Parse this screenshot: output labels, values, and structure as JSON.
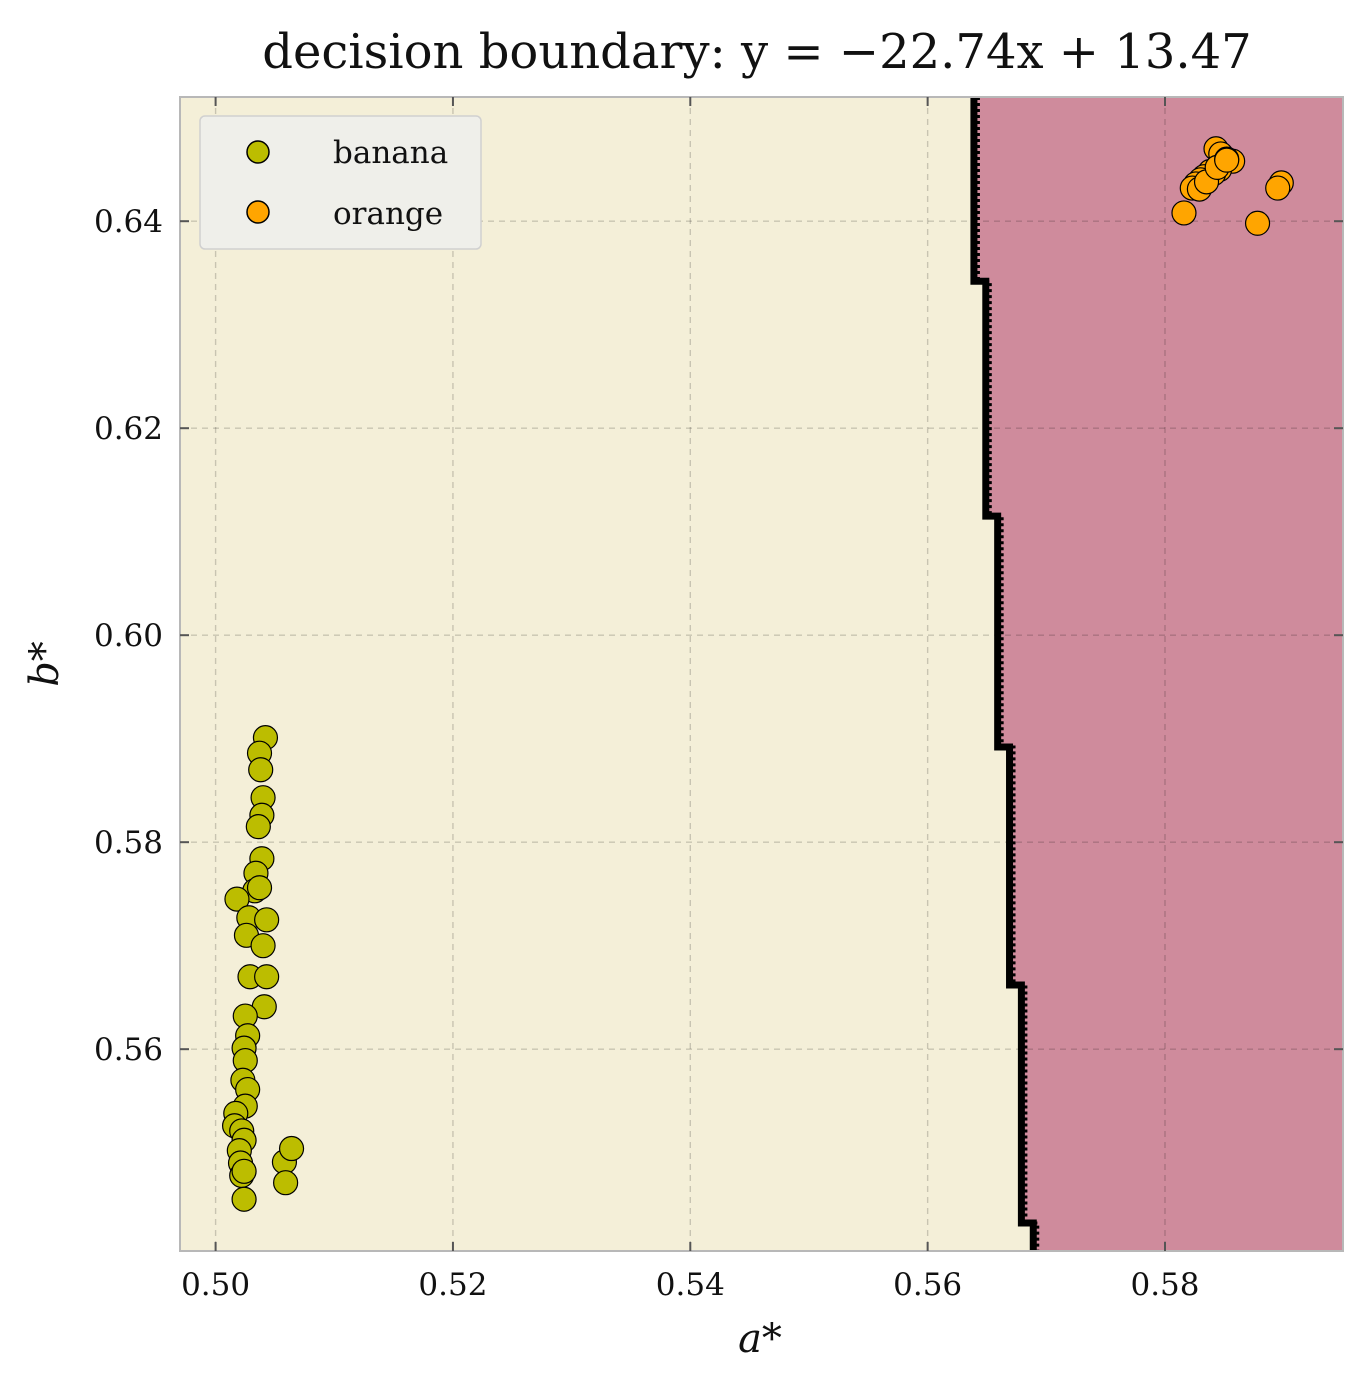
{
  "chart_data": {
    "type": "scatter",
    "title": "decision boundary: y = −22.74x + 13.47",
    "xlabel": "a*",
    "ylabel": "b*",
    "xlim": [
      0.497,
      0.595
    ],
    "ylim": [
      0.5405,
      0.652
    ],
    "xticks": [
      0.5,
      0.52,
      0.54,
      0.56,
      0.58
    ],
    "xtick_labels": [
      "0.50",
      "0.52",
      "0.54",
      "0.56",
      "0.58"
    ],
    "yticks": [
      0.56,
      0.58,
      0.6,
      0.62,
      0.64
    ],
    "ytick_labels": [
      "0.56",
      "0.58",
      "0.60",
      "0.62",
      "0.64"
    ],
    "grid": true,
    "legend_position": "top-left",
    "regions": [
      {
        "name": "banana",
        "color": "#f4efd8"
      },
      {
        "name": "orange",
        "color": "#cf8b9c"
      }
    ],
    "boundary": {
      "slope": -22.74,
      "intercept": 13.47,
      "steps": [
        {
          "y_top": 0.652,
          "y_bottom": 0.6342,
          "x": 0.5639
        },
        {
          "y_top": 0.6342,
          "y_bottom": 0.6115,
          "x": 0.5649
        },
        {
          "y_top": 0.6115,
          "y_bottom": 0.5892,
          "x": 0.5659
        },
        {
          "y_top": 0.5892,
          "y_bottom": 0.5662,
          "x": 0.5669
        },
        {
          "y_top": 0.5662,
          "y_bottom": 0.5432,
          "x": 0.5679
        },
        {
          "y_top": 0.5432,
          "y_bottom": 0.5405,
          "x": 0.5689
        }
      ]
    },
    "series": [
      {
        "name": "banana",
        "color": "#bcbd00",
        "points": [
          [
            0.5042,
            0.5901
          ],
          [
            0.5037,
            0.5886
          ],
          [
            0.5038,
            0.587
          ],
          [
            0.504,
            0.5843
          ],
          [
            0.5039,
            0.5826
          ],
          [
            0.5036,
            0.5815
          ],
          [
            0.5039,
            0.5784
          ],
          [
            0.5034,
            0.577
          ],
          [
            0.5033,
            0.5753
          ],
          [
            0.5037,
            0.5756
          ],
          [
            0.5018,
            0.5745
          ],
          [
            0.5028,
            0.5727
          ],
          [
            0.5043,
            0.5725
          ],
          [
            0.5026,
            0.571
          ],
          [
            0.504,
            0.57
          ],
          [
            0.5029,
            0.567
          ],
          [
            0.5043,
            0.567
          ],
          [
            0.5041,
            0.5641
          ],
          [
            0.5025,
            0.5632
          ],
          [
            0.5027,
            0.5613
          ],
          [
            0.5024,
            0.5601
          ],
          [
            0.5025,
            0.5589
          ],
          [
            0.5023,
            0.557
          ],
          [
            0.5027,
            0.5561
          ],
          [
            0.5025,
            0.5545
          ],
          [
            0.5017,
            0.5538
          ],
          [
            0.5016,
            0.5526
          ],
          [
            0.5022,
            0.5521
          ],
          [
            0.5024,
            0.5512
          ],
          [
            0.502,
            0.5502
          ],
          [
            0.5021,
            0.549
          ],
          [
            0.5022,
            0.5478
          ],
          [
            0.5024,
            0.5482
          ],
          [
            0.5024,
            0.5455
          ],
          [
            0.5058,
            0.5491
          ],
          [
            0.5064,
            0.5504
          ],
          [
            0.5059,
            0.5471
          ]
        ]
      },
      {
        "name": "orange",
        "color": "#ffa500",
        "points": [
          [
            0.5843,
            0.647
          ],
          [
            0.5847,
            0.6465
          ],
          [
            0.585,
            0.6456
          ],
          [
            0.5857,
            0.6458
          ],
          [
            0.5846,
            0.645
          ],
          [
            0.5841,
            0.6446
          ],
          [
            0.5838,
            0.6448
          ],
          [
            0.5833,
            0.6443
          ],
          [
            0.583,
            0.644
          ],
          [
            0.5826,
            0.6436
          ],
          [
            0.5823,
            0.6432
          ],
          [
            0.5829,
            0.6431
          ],
          [
            0.5835,
            0.6438
          ],
          [
            0.5844,
            0.6452
          ],
          [
            0.5852,
            0.646
          ],
          [
            0.5816,
            0.6408
          ],
          [
            0.5898,
            0.6437
          ],
          [
            0.5895,
            0.6432
          ],
          [
            0.5878,
            0.6398
          ],
          [
            0.5852,
            0.6459
          ]
        ]
      }
    ]
  }
}
